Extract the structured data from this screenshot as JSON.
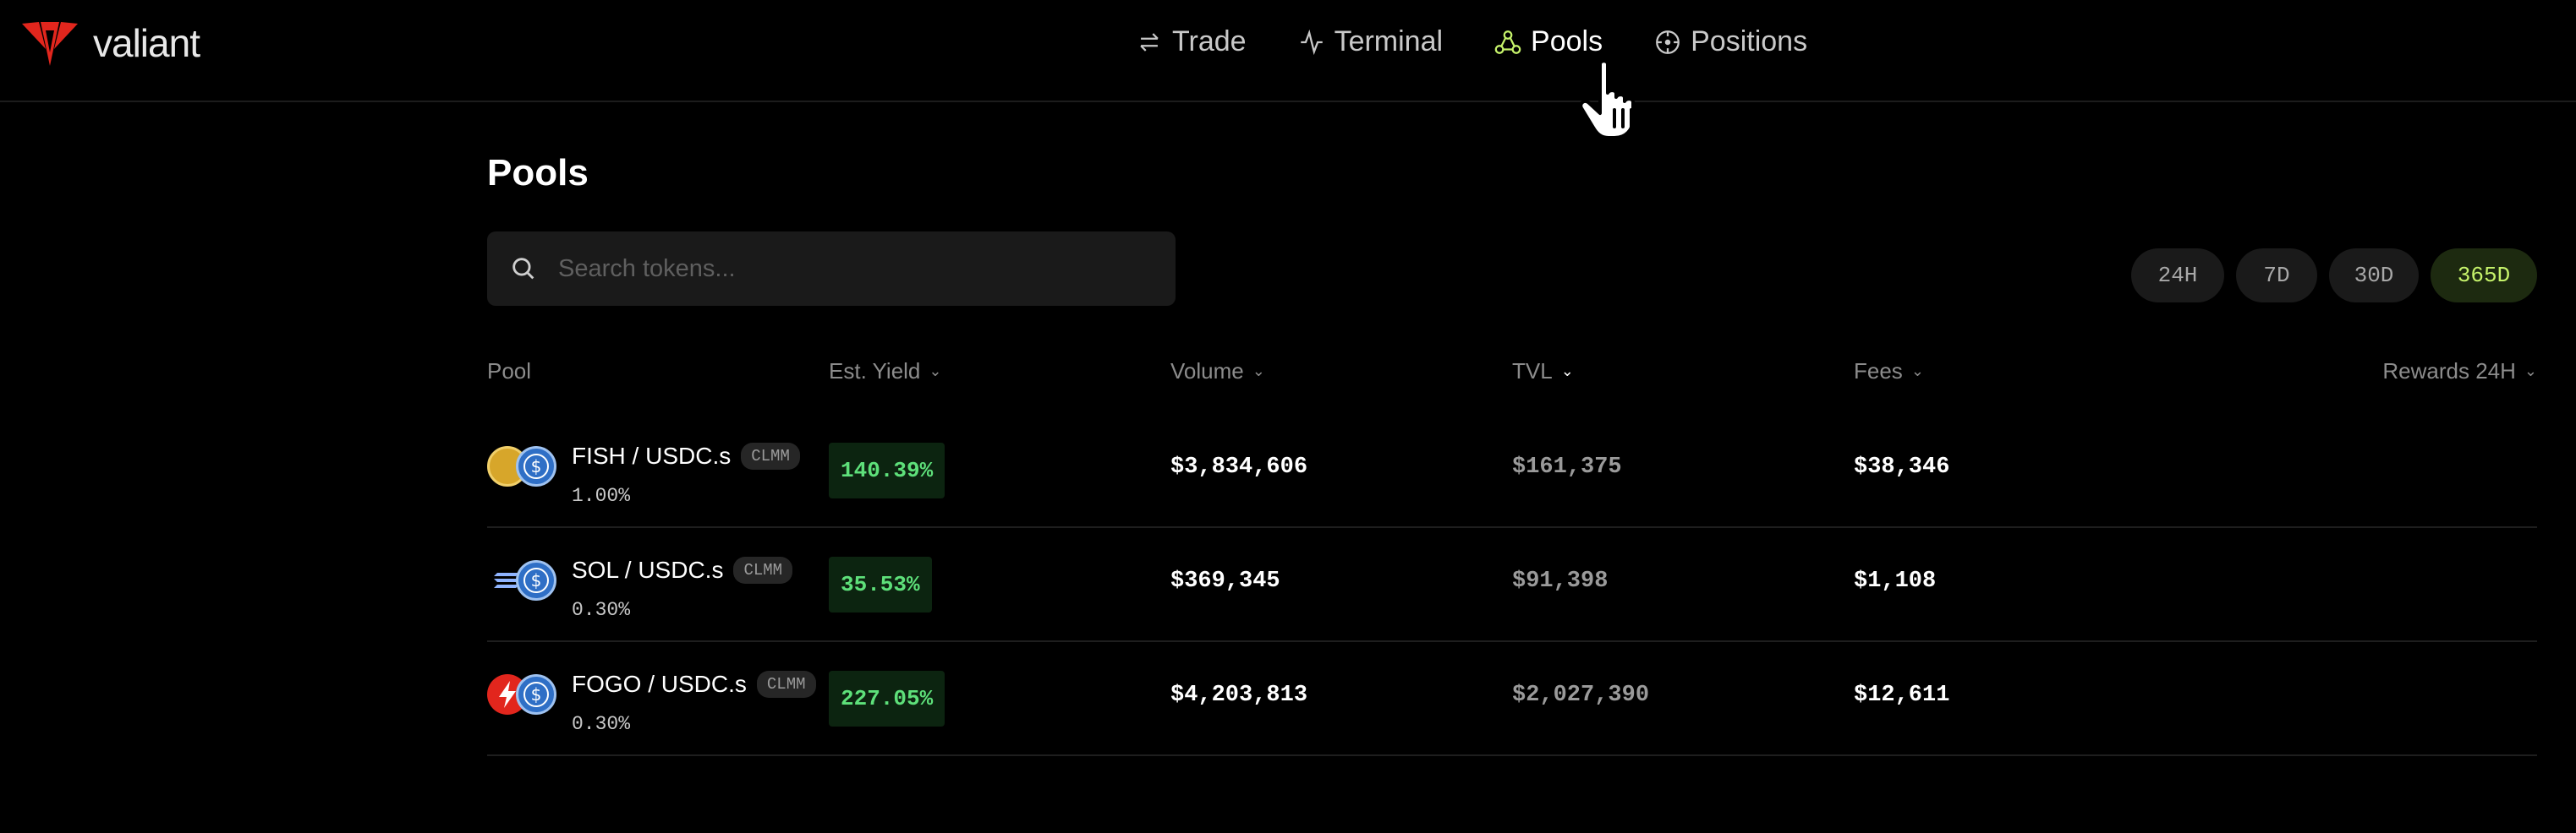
{
  "header": {
    "brand": "valiant",
    "nav": [
      {
        "label": "Trade",
        "icon": "swap-icon",
        "active": false
      },
      {
        "label": "Terminal",
        "icon": "pulse-icon",
        "active": false
      },
      {
        "label": "Pools",
        "icon": "pools-icon",
        "active": true
      },
      {
        "label": "Positions",
        "icon": "target-icon",
        "active": false
      }
    ]
  },
  "page": {
    "title": "Pools",
    "search_placeholder": "Search tokens..."
  },
  "periods": [
    {
      "label": "24H",
      "active": false
    },
    {
      "label": "7D",
      "active": false
    },
    {
      "label": "30D",
      "active": false
    },
    {
      "label": "365D",
      "active": true
    }
  ],
  "table": {
    "columns": {
      "pool": "Pool",
      "yield": "Est. Yield",
      "volume": "Volume",
      "tvl": "TVL",
      "fees": "Fees",
      "rewards": "Rewards 24H"
    },
    "sorted_by": "TVL",
    "rows": [
      {
        "pair": "FISH / USDC.s",
        "type": "CLMM",
        "fee": "1.00%",
        "yield": "140.39%",
        "volume": "$3,834,606",
        "tvl": "$161,375",
        "fees": "$38,346",
        "rewards": "",
        "token_icons": [
          "fish-token-icon",
          "usdc-token-icon"
        ]
      },
      {
        "pair": "SOL / USDC.s",
        "type": "CLMM",
        "fee": "0.30%",
        "yield": "35.53%",
        "volume": "$369,345",
        "tvl": "$91,398",
        "fees": "$1,108",
        "rewards": "",
        "token_icons": [
          "sol-token-icon",
          "usdc-token-icon"
        ]
      },
      {
        "pair": "FOGO / USDC.s",
        "type": "CLMM",
        "fee": "0.30%",
        "yield": "227.05%",
        "volume": "$4,203,813",
        "tvl": "$2,027,390",
        "fees": "$12,611",
        "rewards": "",
        "token_icons": [
          "fogo-token-icon",
          "usdc-token-icon"
        ]
      }
    ]
  },
  "colors": {
    "background": "#000000",
    "accent": "#c6f36b",
    "yield_text": "#5ee07a",
    "brand_red": "#e2261d"
  }
}
